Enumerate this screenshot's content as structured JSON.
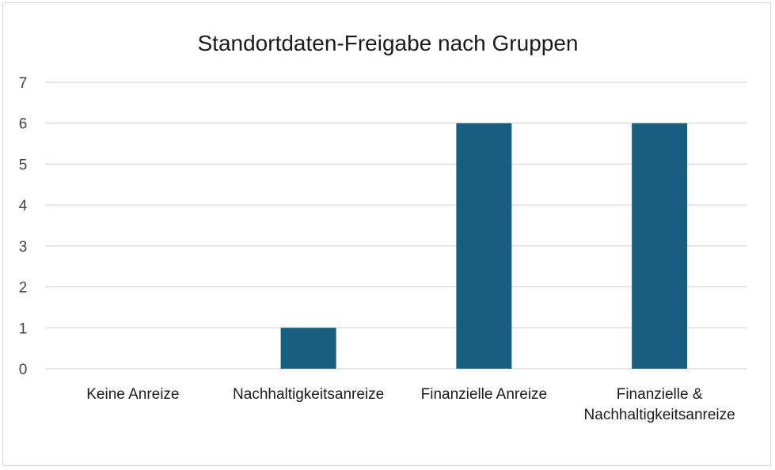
{
  "chart_data": {
    "type": "bar",
    "title": "Standortdaten-Freigabe nach Gruppen",
    "categories": [
      [
        "Keine Anreize"
      ],
      [
        "Nachhaltigkeitsanreize"
      ],
      [
        "Finanzielle Anreize"
      ],
      [
        "Finanzielle &",
        "Nachhaltigkeitsanreize"
      ]
    ],
    "values": [
      0,
      1,
      6,
      6
    ],
    "ylim": [
      0,
      7
    ],
    "yticks": [
      0,
      1,
      2,
      3,
      4,
      5,
      6,
      7
    ],
    "xlabel": "",
    "ylabel": "",
    "grid": true,
    "legend": "none",
    "bar_color": "#175e80"
  }
}
